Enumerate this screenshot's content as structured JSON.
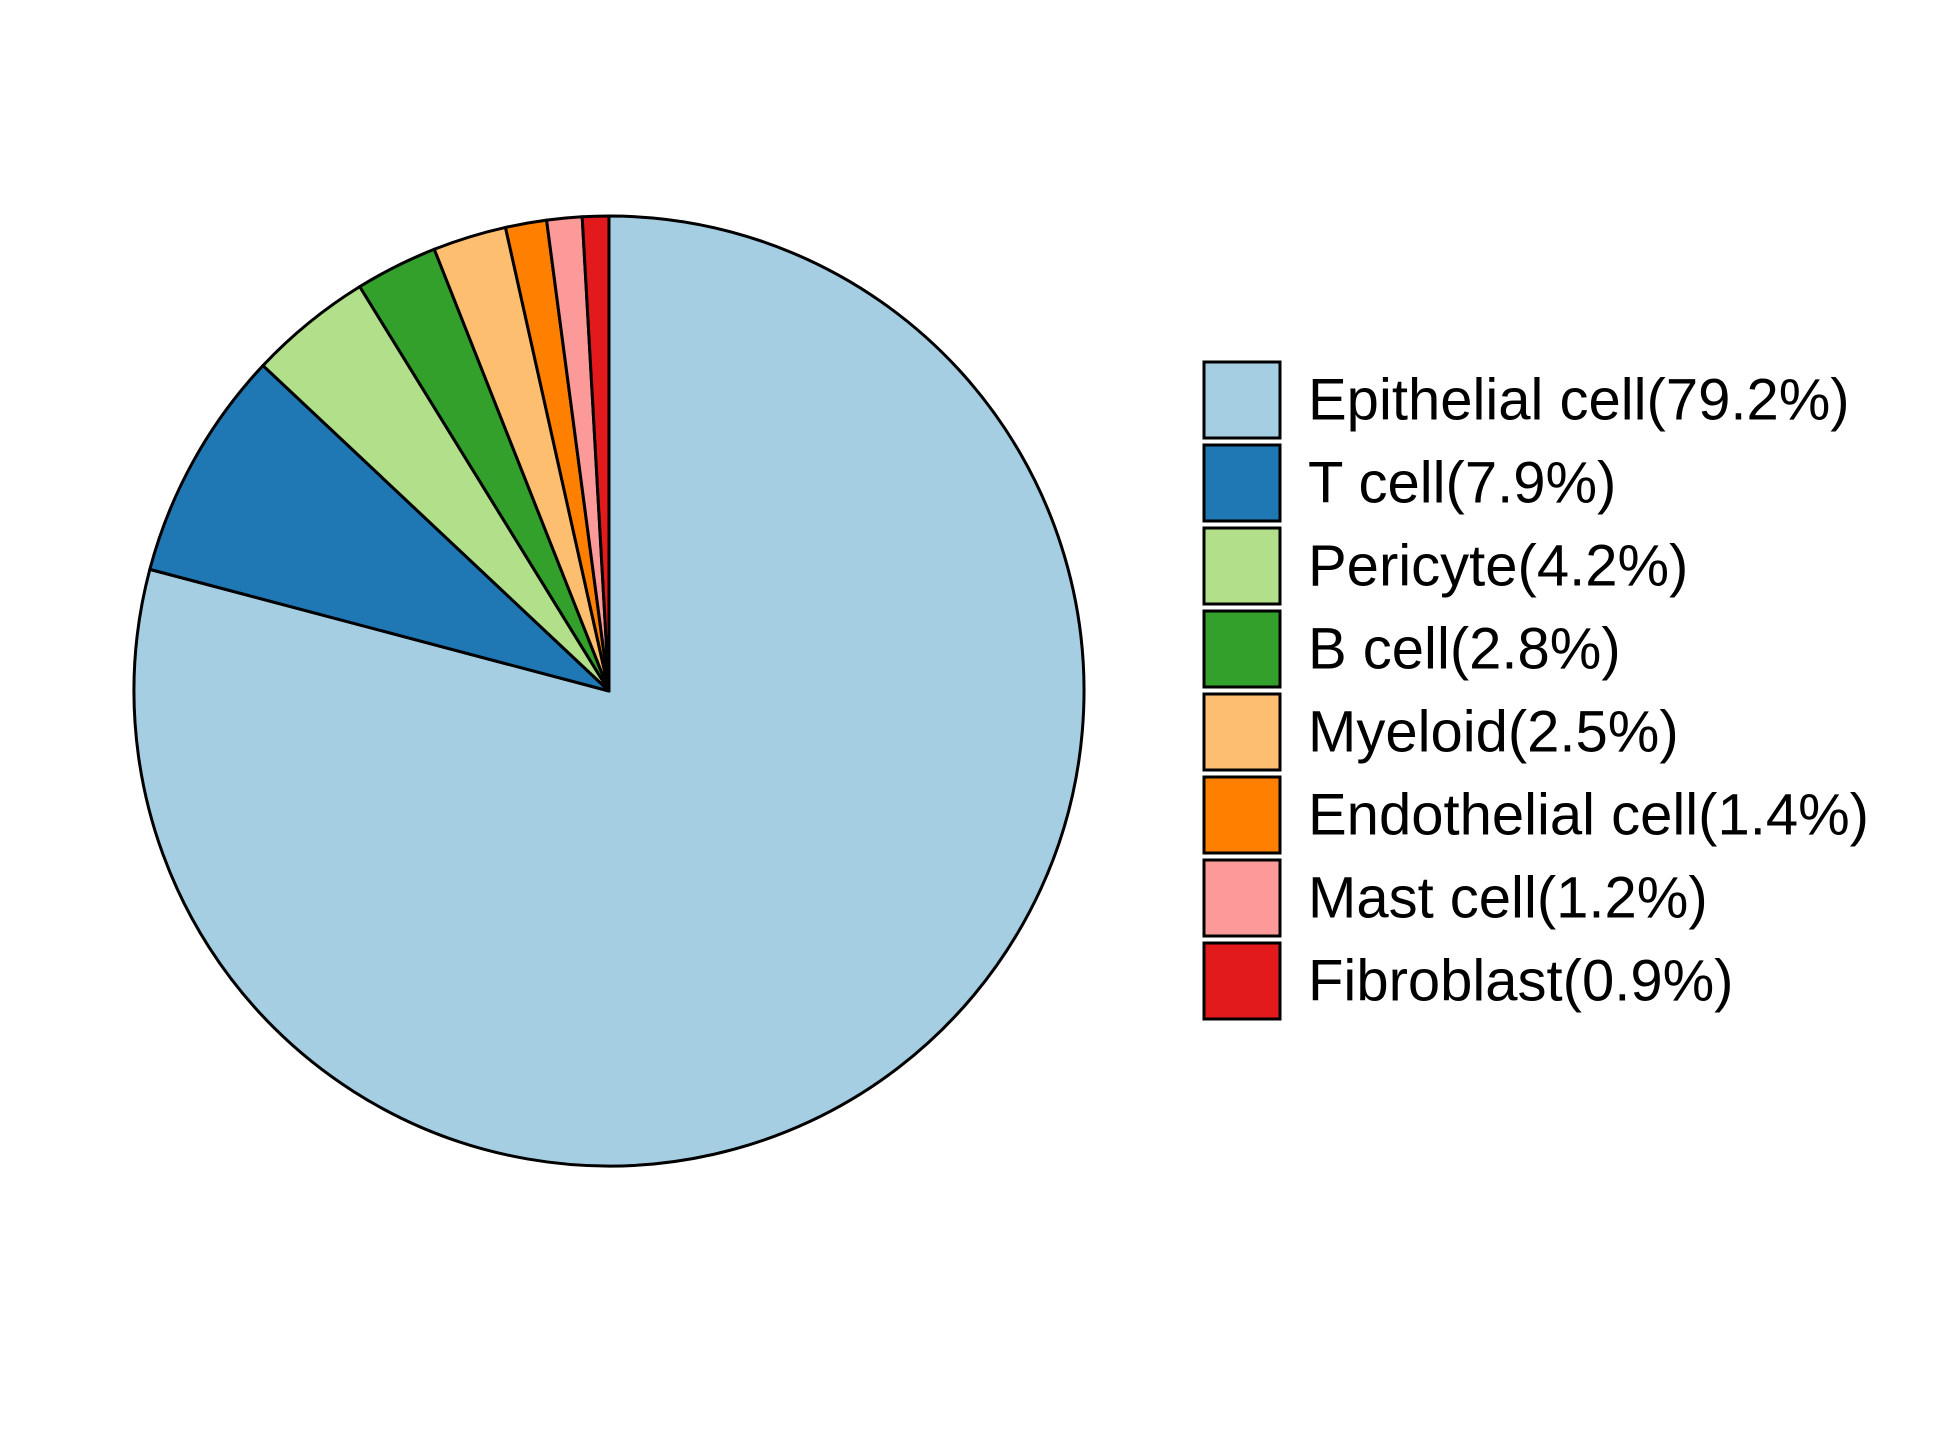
{
  "chart_data": {
    "type": "pie",
    "start_angle_deg": 90,
    "direction": "clockwise",
    "legend_position": "right",
    "slices": [
      {
        "label": "Epithelial cell(79.2%)",
        "value": 79.2,
        "color": "#A6CEE3"
      },
      {
        "label": "T cell(7.9%)",
        "value": 7.9,
        "color": "#1F78B4"
      },
      {
        "label": "Pericyte(4.2%)",
        "value": 4.2,
        "color": "#B2DF8A"
      },
      {
        "label": "B cell(2.8%)",
        "value": 2.8,
        "color": "#33A02C"
      },
      {
        "label": "Myeloid(2.5%)",
        "value": 2.5,
        "color": "#FDBF6F"
      },
      {
        "label": "Endothelial cell(1.4%)",
        "value": 1.4,
        "color": "#FF7F00"
      },
      {
        "label": "Mast cell(1.2%)",
        "value": 1.2,
        "color": "#FB9A99"
      },
      {
        "label": "Fibroblast(0.9%)",
        "value": 0.9,
        "color": "#E31A1C"
      }
    ]
  }
}
